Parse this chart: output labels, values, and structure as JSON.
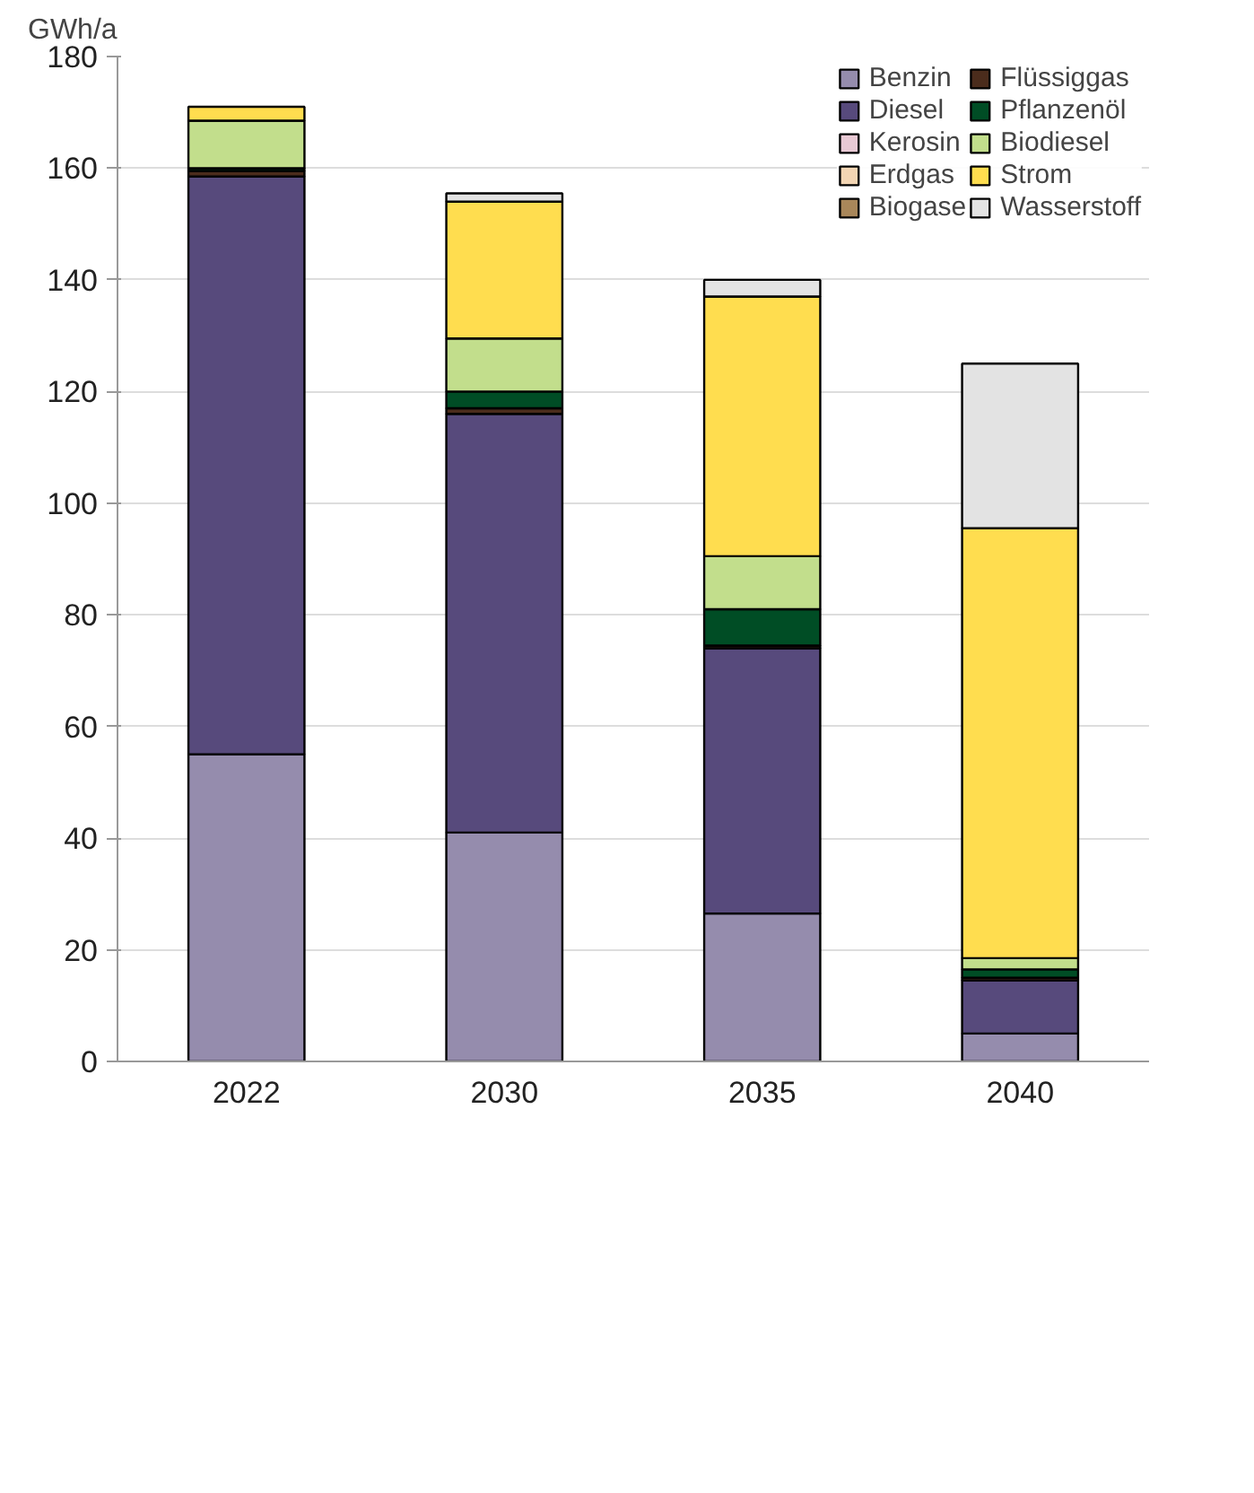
{
  "chart_data": {
    "type": "bar",
    "stacked": true,
    "ylabel": "GWh/a",
    "categories": [
      "2022",
      "2030",
      "2035",
      "2040"
    ],
    "series": [
      {
        "name": "Benzin",
        "color": "#958cad",
        "values": [
          55,
          41,
          26.5,
          5
        ]
      },
      {
        "name": "Diesel",
        "color": "#574a7c",
        "values": [
          103.5,
          75,
          47.5,
          9.5
        ]
      },
      {
        "name": "Kerosin",
        "color": "#e8c9d4",
        "values": [
          null,
          null,
          null,
          null
        ]
      },
      {
        "name": "Erdgas",
        "color": "#f3d5b3",
        "values": [
          null,
          null,
          null,
          null
        ]
      },
      {
        "name": "Biogase",
        "color": "#a9875a",
        "values": [
          null,
          null,
          null,
          null
        ]
      },
      {
        "name": "Flüssiggas",
        "color": "#4b2c1c",
        "values": [
          1,
          1,
          0.5,
          0.5
        ]
      },
      {
        "name": "Pflanzenöl",
        "color": "#004d25",
        "values": [
          0.5,
          3,
          6.5,
          1.5
        ]
      },
      {
        "name": "Biodiesel",
        "color": "#c2de8c",
        "values": [
          8.5,
          9.5,
          9.5,
          2
        ]
      },
      {
        "name": "Strom",
        "color": "#ffdd4f",
        "values": [
          2.5,
          24.5,
          46.5,
          77
        ]
      },
      {
        "name": "Wasserstoff",
        "color": "#e3e3e3",
        "values": [
          null,
          1.5,
          3,
          29.5
        ]
      }
    ],
    "ylim": [
      0,
      180
    ],
    "yticks": [
      0,
      20,
      40,
      60,
      80,
      100,
      120,
      140,
      160,
      180
    ],
    "grid": "y",
    "legend": "top right"
  }
}
